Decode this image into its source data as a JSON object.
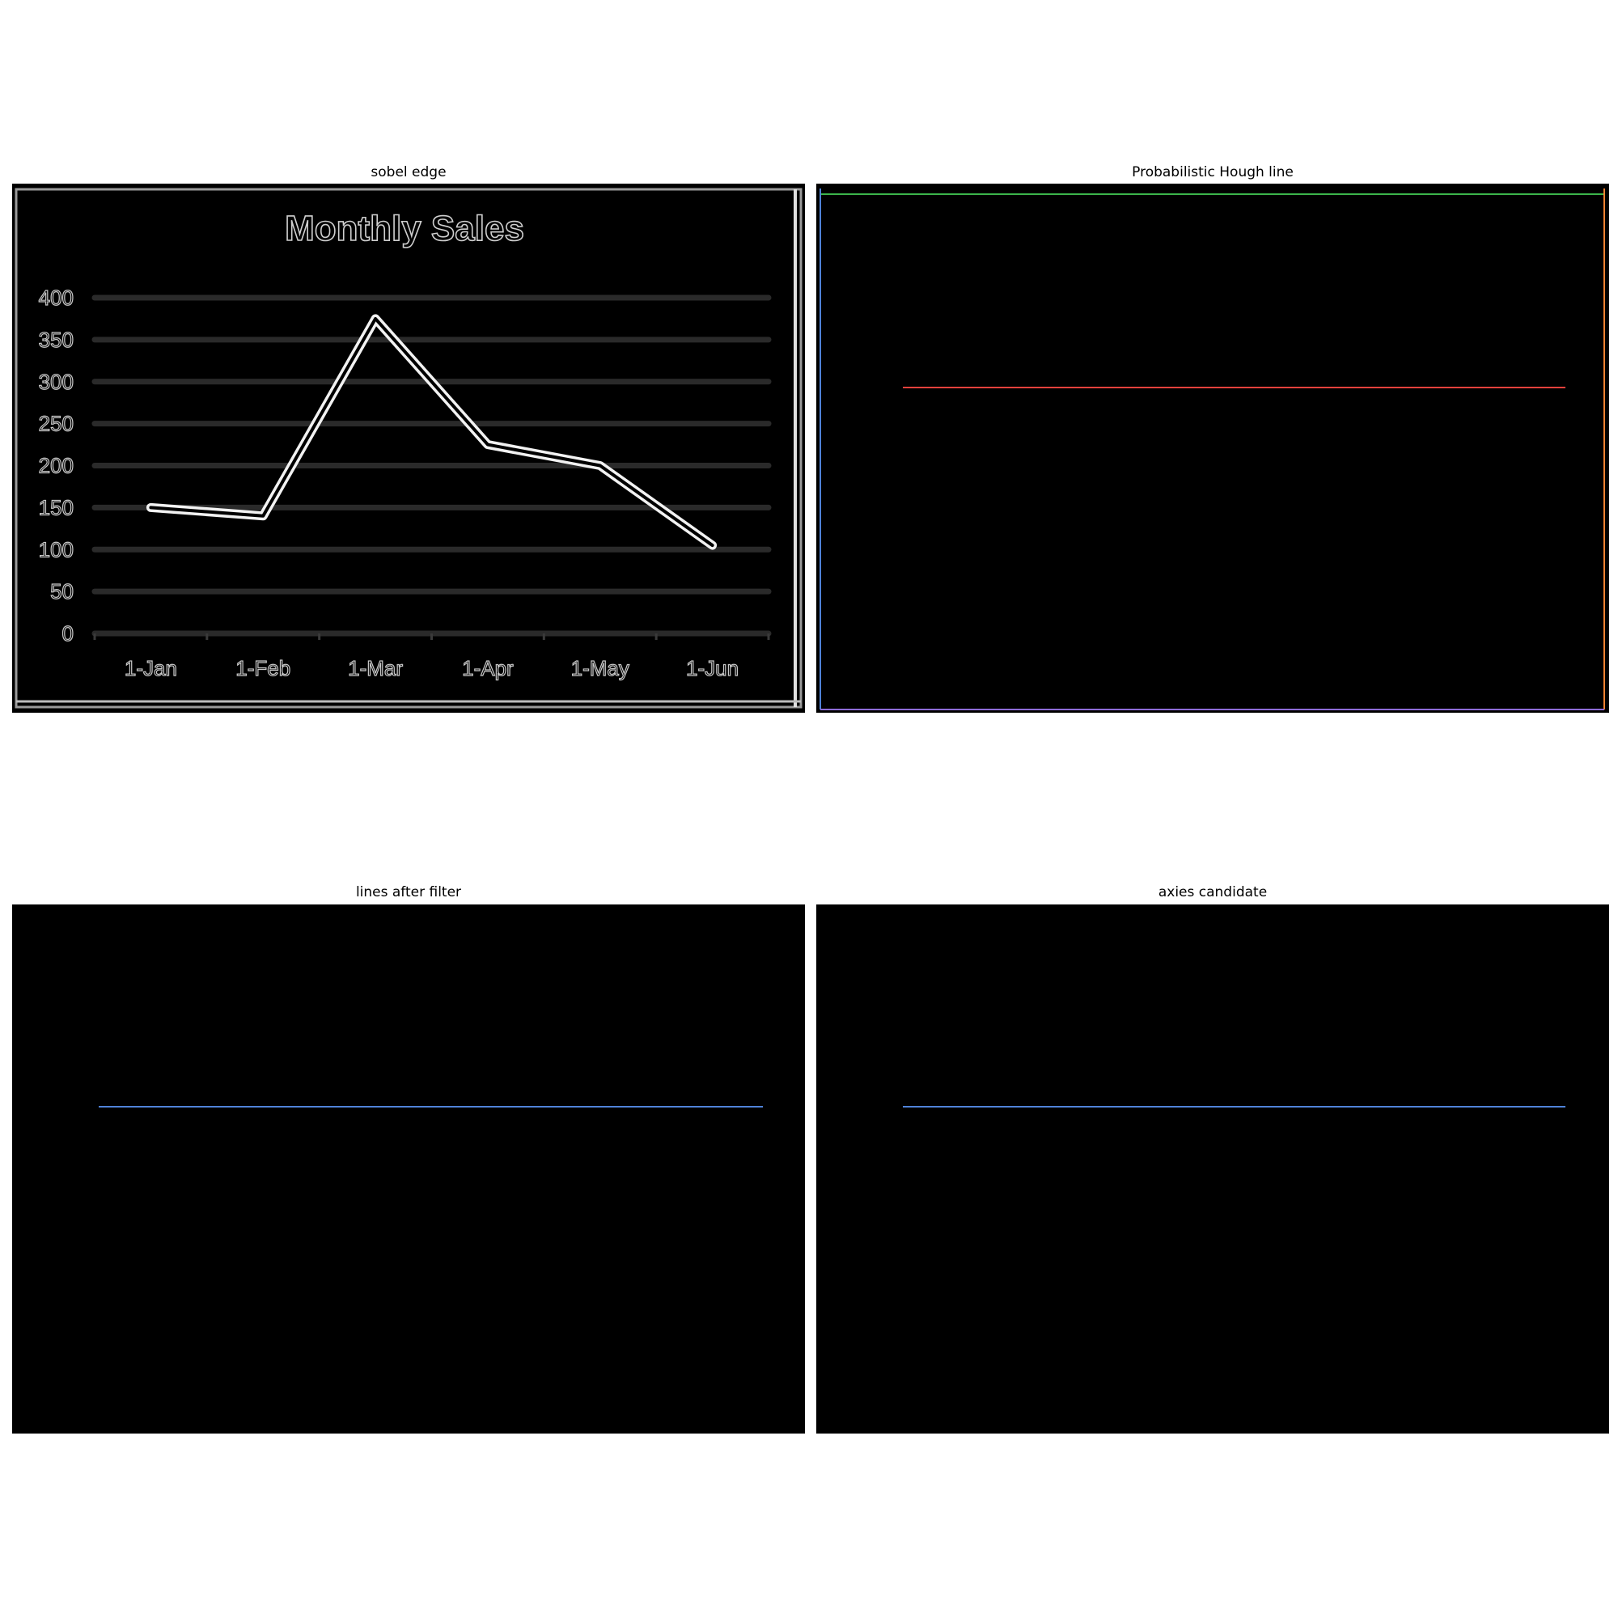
{
  "panels": [
    {
      "title": "sobel edge",
      "chart_data": {
        "type": "line",
        "title": "Monthly Sales",
        "categories": [
          "1-Jan",
          "1-Feb",
          "1-Mar",
          "1-Apr",
          "1-May",
          "1-Jun"
        ],
        "yticks": [
          "0",
          "50",
          "100",
          "150",
          "200",
          "250",
          "300",
          "350",
          "400"
        ],
        "ylim": [
          0,
          400
        ],
        "grid": true,
        "series": [
          {
            "values": [
              150,
              140,
              375,
              225,
              200,
              105
            ]
          }
        ]
      }
    },
    {
      "title": "Probabilistic Hough line"
    },
    {
      "title": "lines after filter"
    },
    {
      "title": "axies candidate"
    }
  ],
  "colors": {
    "background": "#000000",
    "edge": "#d8d8d8",
    "hough_red": "#e8413c",
    "hough_green": "#3cb44b",
    "hough_blue": "#4f82d8",
    "hough_orange": "#f58231",
    "hough_purple": "#8c6bd6",
    "filtered_blue": "#4f82d8"
  }
}
